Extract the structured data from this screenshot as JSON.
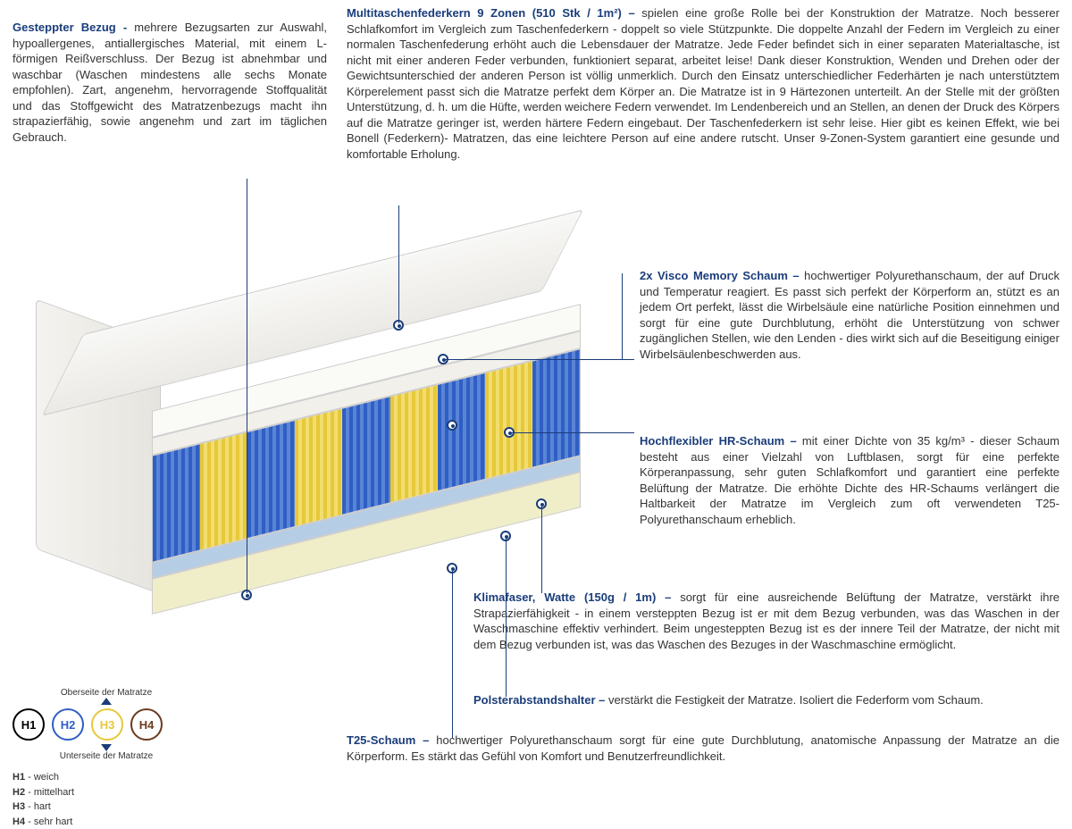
{
  "sections": {
    "cover": {
      "title": "Gesteppter Bezug - ",
      "body": "mehrere Bezugsarten zur Auswahl, hypoallergenes, antiallergisches Material, mit einem L-förmigen Reißverschluss. Der Bezug ist abnehmbar und waschbar (Waschen mindestens alle sechs Monate empfohlen). Zart, angenehm, hervorragende Stoffqualität und das Stoffgewicht des Matratzenbezugs macht ihn strapazierfähig, sowie angenehm und zart im täglichen Gebrauch."
    },
    "springs": {
      "title": "Multitaschenfederkern 9 Zonen (510 Stk / 1m²) – ",
      "body": "spielen eine große Rolle bei der Konstruktion der Matratze. Noch besserer Schlafkomfort im Vergleich zum Taschenfederkern - doppelt so viele Stützpunkte. Die doppelte Anzahl der Federn im Vergleich zu einer normalen Taschenfederung erhöht auch die Lebensdauer der Matratze. Jede Feder befindet sich in einer separaten Materialtasche, ist nicht mit einer anderen Feder verbunden, funktioniert separat, arbeitet leise! Dank dieser Konstruktion, Wenden und Drehen oder der Gewichtsunterschied der anderen Person ist völlig unmerklich. Durch den Einsatz unterschiedlicher Federhärten je nach unterstütztem Körperelement passt sich die Matratze perfekt dem Körper an. Die Matratze ist in 9 Härtezonen unterteilt. An der Stelle mit der größten Unterstützung, d. h. um die Hüfte, werden weichere Federn verwendet. Im Lendenbereich und an Stellen, an denen der Druck des Körpers auf die Matratze geringer ist, werden härtere Federn eingebaut. Der Taschenfederkern ist sehr leise. Hier gibt es keinen Effekt, wie bei Bonell (Federkern)- Matratzen, das eine leichtere Person auf eine andere rutscht. Unser 9-Zonen-System garantiert eine gesunde und komfortable Erholung."
    },
    "visco": {
      "title": "2x Visco Memory Schaum – ",
      "body": "hochwertiger Polyurethanschaum, der auf Druck und Temperatur reagiert. Es passt sich perfekt der Körperform an, stützt es an jedem Ort perfekt, lässt die Wirbelsäule eine natürliche Position einnehmen und sorgt für eine gute Durchblutung, erhöht die Unterstützung von schwer zugänglichen Stellen, wie den Lenden - dies wirkt sich auf die Beseitigung einiger Wirbelsäulenbeschwerden aus."
    },
    "hr": {
      "title": "Hochflexibler HR-Schaum – ",
      "body": "mit einer Dichte von 35 kg/m³ - dieser Schaum besteht aus einer Vielzahl von Luftblasen, sorgt für eine perfekte Körperanpassung, sehr guten Schlafkomfort und garantiert eine perfekte Belüftung der Matratze. Die erhöhte Dichte des HR-Schaums verlängert die Haltbarkeit der Matratze im Vergleich zum oft verwendeten T25-Polyurethanschaum erheblich."
    },
    "klima": {
      "title": "Klimafaser, Watte (150g / 1m) – ",
      "body": "sorgt für eine ausreichende Belüftung der Matratze, verstärkt ihre Strapazierfähigkeit - in einem versteppten Bezug ist er mit dem Bezug verbunden, was das Waschen in der Waschmaschine effektiv verhindert. Beim ungesteppten Bezug ist es der innere Teil der Matratze, der nicht mit dem Bezug verbunden ist, was das Waschen des Bezuges in der Waschmaschine ermöglicht."
    },
    "polster": {
      "title": "Polsterabstandshalter – ",
      "body": "verstärkt die Festigkeit der Matratze. Isoliert die Federform vom Schaum."
    },
    "t25": {
      "title": "T25-Schaum – ",
      "body": "hochwertiger Polyurethanschaum sorgt für eine gute Durchblutung, anatomische Anpassung der Matratze an die Körperform. Es stärkt das Gefühl von Komfort und Benutzerfreundlichkeit."
    }
  },
  "legend": {
    "top_label": "Oberseite der Matratze",
    "bottom_label": "Unterseite der Matratze",
    "items": [
      {
        "code": "H1",
        "label": "weich",
        "color": "#000000"
      },
      {
        "code": "H2",
        "label": "mittelhart",
        "color": "#2f5fc4"
      },
      {
        "code": "H3",
        "label": "hart",
        "color": "#e6c83a"
      },
      {
        "code": "H4",
        "label": "sehr hart",
        "color": "#6b3a1e"
      }
    ]
  },
  "colors": {
    "title": "#1a3d7a",
    "spring_blue": "#2f5fc4",
    "spring_yellow": "#e6c83a",
    "foam_blue": "#b6cde6",
    "foam_cream": "#f0eec8"
  },
  "spring_zones": [
    "b",
    "y",
    "b",
    "y",
    "b",
    "y",
    "b",
    "y",
    "b"
  ]
}
